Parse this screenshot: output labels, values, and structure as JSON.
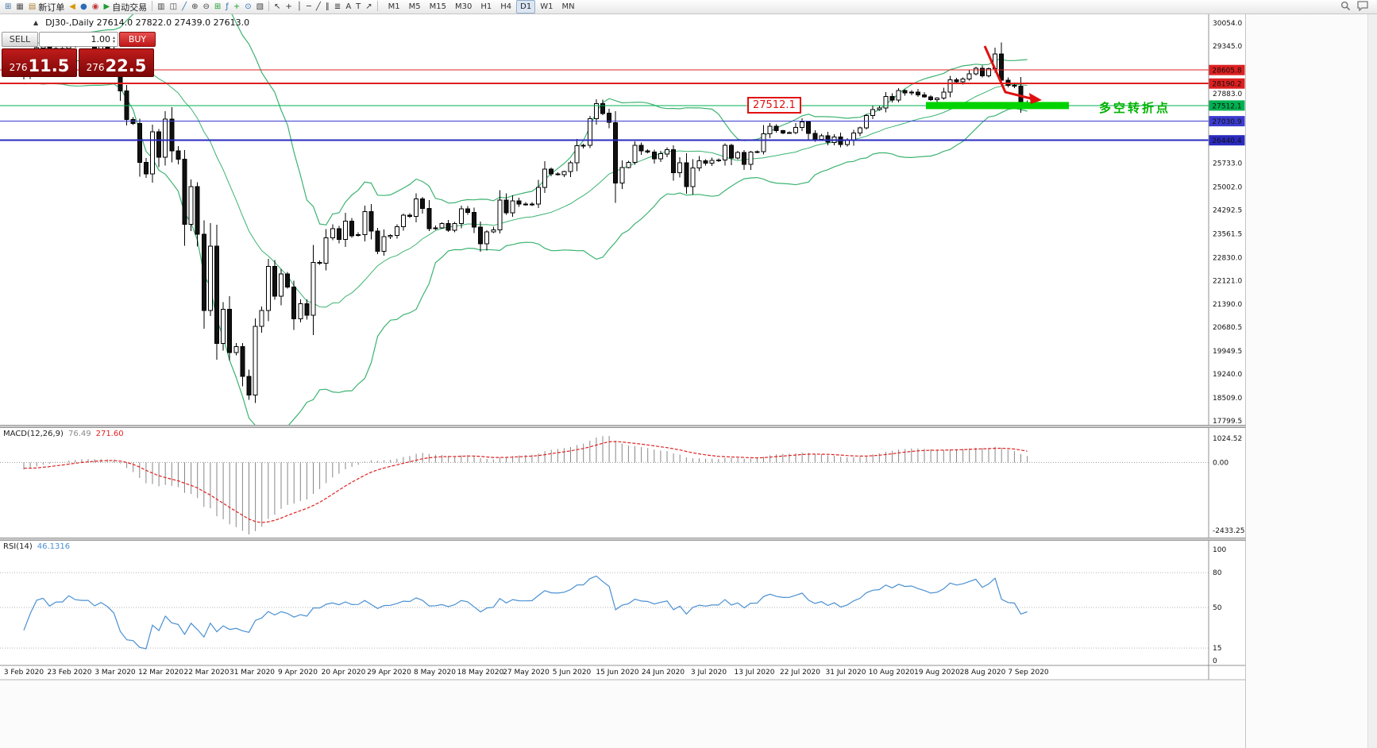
{
  "toolbar": {
    "buttons": [
      {
        "name": "new-chart-icon",
        "glyph": "⊞",
        "color": "#3a6ea5"
      },
      {
        "name": "profiles-icon",
        "glyph": "▦",
        "color": "#555555"
      },
      {
        "name": "new-order-button",
        "glyph": "▤",
        "color": "#b08030",
        "label": "新订单"
      },
      {
        "name": "alerts-icon",
        "glyph": "◀",
        "color": "#d69a00"
      },
      {
        "name": "news-icon",
        "glyph": "●",
        "color": "#2b6cb8"
      },
      {
        "name": "market-icon",
        "glyph": "◉",
        "color": "#c23b3b"
      },
      {
        "name": "auto-trading-button",
        "glyph": "▶",
        "color": "#1f9d2f",
        "label": "自动交易"
      },
      {
        "name": "separator"
      },
      {
        "name": "bar-chart-icon",
        "glyph": "▥",
        "color": "#444444"
      },
      {
        "name": "candlestick-chart-icon",
        "glyph": "◫",
        "color": "#444444"
      },
      {
        "name": "line-chart-icon",
        "glyph": "╱",
        "color": "#2b6cb8"
      },
      {
        "name": "zoom-in-icon",
        "glyph": "⊕",
        "color": "#444444"
      },
      {
        "name": "zoom-out-icon",
        "glyph": "⊖",
        "color": "#444444"
      },
      {
        "name": "tile-windows-icon",
        "glyph": "⊞",
        "color": "#1f9d2f"
      },
      {
        "name": "indicators-list-icon",
        "glyph": "ƒ",
        "color": "#2b6cb8"
      },
      {
        "name": "add-indicator-icon",
        "glyph": "+",
        "color": "#1f9d2f"
      },
      {
        "name": "periods-icon",
        "glyph": "⊙",
        "color": "#2b6cb8"
      },
      {
        "name": "templates-icon",
        "glyph": "▧",
        "color": "#444444"
      },
      {
        "name": "separator"
      },
      {
        "name": "cursor-icon",
        "glyph": "↖",
        "color": "#333333"
      },
      {
        "name": "crosshair-icon",
        "glyph": "+",
        "color": "#333333"
      },
      {
        "name": "vertical-line-icon",
        "glyph": "│",
        "color": "#333333"
      },
      {
        "name": "horizontal-line-icon",
        "glyph": "─",
        "color": "#333333"
      },
      {
        "name": "trendline-icon",
        "glyph": "╱",
        "color": "#333333"
      },
      {
        "name": "channel-icon",
        "glyph": "∥",
        "color": "#333333"
      },
      {
        "name": "fibonacci-icon",
        "glyph": "≣",
        "color": "#333333"
      },
      {
        "name": "text-icon",
        "glyph": "A",
        "color": "#333333"
      },
      {
        "name": "label-icon",
        "glyph": "T",
        "color": "#333333"
      },
      {
        "name": "arrows-icon",
        "glyph": "↗",
        "color": "#333333"
      },
      {
        "name": "separator"
      }
    ],
    "timeframes": [
      "M1",
      "M5",
      "M15",
      "M30",
      "H1",
      "H4",
      "D1",
      "W1",
      "MN"
    ],
    "active_timeframe": "D1",
    "right_icons": [
      {
        "name": "search-icon"
      },
      {
        "name": "chat-icon"
      }
    ]
  },
  "one_click": {
    "collapse_icon": "▲",
    "sell_label": "SELL",
    "buy_label": "BUY",
    "volume": "1.00",
    "sell_price": "27611.5",
    "buy_price": "27622.5",
    "sell_small": "276",
    "sell_big": "11.5",
    "buy_small": "276",
    "buy_big": "22.5"
  },
  "chart_data": {
    "type": "candlestick",
    "symbol": "DJ30-",
    "period": "Daily",
    "title": "DJ30-,Daily 27614.0 27822.0 27439.0 27613.0",
    "ohlc_display": {
      "open": 27614.0,
      "high": 27822.0,
      "low": 27439.0,
      "close": 27613.0
    },
    "ylim": [
      17628,
      30323
    ],
    "y_axis_ticks": [
      30054.0,
      29345.0,
      27883.0,
      25733.0,
      25002.0,
      24292.5,
      23561.5,
      22830.0,
      22121.0,
      21390.0,
      20680.5,
      19949.5,
      19240.0,
      18509.0,
      17799.5
    ],
    "x_labels": [
      "3 Feb 2020",
      "23 Feb 2020",
      "3 Mar 2020",
      "12 Mar 2020",
      "22 Mar 2020",
      "31 Mar 2020",
      "9 Apr 2020",
      "20 Apr 2020",
      "29 Apr 2020",
      "8 May 2020",
      "18 May 2020",
      "27 May 2020",
      "5 Jun 2020",
      "15 Jun 2020",
      "24 Jun 2020",
      "3 Jul 2020",
      "13 Jul 2020",
      "22 Jul 2020",
      "31 Jul 2020",
      "10 Aug 2020",
      "19 Aug 2020",
      "28 Aug 2020",
      "7 Sep 2020"
    ],
    "seed_closes": [
      29350,
      29250,
      29160,
      29300,
      29220,
      29100,
      28990,
      28850,
      28750,
      28700,
      28950,
      29000,
      28850,
      28700,
      28550,
      28250,
      28400,
      28500,
      28450
    ],
    "closes": [
      28400,
      28807,
      29290,
      29380,
      29103,
      29277,
      29276,
      29551,
      29423,
      29398,
      29398,
      29232,
      29348,
      29220,
      28992,
      27961,
      27081,
      26958,
      25766,
      25409,
      26703,
      25917,
      27091,
      26121,
      25865,
      23851,
      25018,
      23553,
      21200,
      23185,
      20188,
      21237,
      19899,
      20087,
      19174,
      18592,
      20705,
      21200,
      22552,
      21637,
      22327,
      21917,
      20944,
      21413,
      21053,
      22680,
      22654,
      23434,
      23719,
      23391,
      23949,
      23504,
      23537,
      24242,
      23650,
      23018,
      23476,
      23515,
      23775,
      24134,
      24101,
      24634,
      24346,
      23724,
      23749,
      23883,
      23665,
      23876,
      24331,
      24222,
      23765,
      23248,
      23625,
      23685,
      24597,
      24207,
      24576,
      24474,
      24465,
      24480,
      24995,
      25548,
      25401,
      25383,
      25475,
      25743,
      26270,
      26282,
      27111,
      27572,
      27272,
      26990,
      25128,
      25605,
      25763,
      26290,
      26120,
      26080,
      25871,
      26025,
      26156,
      25446,
      25746,
      25016,
      25596,
      25813,
      25735,
      25827,
      25830,
      26287,
      25891,
      26067,
      25706,
      26075,
      26086,
      26643,
      26870,
      26735,
      26672,
      26681,
      26840,
      27006,
      26652,
      26470,
      26585,
      26379,
      26540,
      26313,
      26428,
      26664,
      26828,
      27202,
      27387,
      27433,
      27791,
      27686,
      27977,
      27897,
      27931,
      27845,
      27778,
      27693,
      27740,
      27930,
      28308,
      28248,
      28332,
      28492,
      28654,
      28430,
      28646,
      29101,
      28293,
      28133,
      28105,
      27501,
      27613
    ],
    "price_lines": [
      {
        "price": 28605.8,
        "label": "28605.8",
        "color": "#dd2020",
        "width": 1
      },
      {
        "price": 28190.2,
        "label": "28190.2",
        "color": "#dd2020",
        "width": 2
      },
      {
        "price": 27512.1,
        "label": "27512.1",
        "color": "#00b050",
        "width": 1
      },
      {
        "price": 27030.9,
        "label": "27030.9",
        "color": "#3b3bd0",
        "width": 1
      },
      {
        "price": 26440.4,
        "label": "26440.4",
        "color": "#2a2ac0",
        "width": 2
      }
    ],
    "indicators": {
      "bollinger": {
        "period": 20,
        "deviation": 2,
        "color": "#3cb371"
      },
      "macd": {
        "label": "MACD(12,26,9)",
        "value_main": "76.49",
        "value_signal": "271.60",
        "fast": 12,
        "slow": 26,
        "signal": 9,
        "scale_max": "1024.52",
        "scale_zero": "0.00",
        "scale_min": "-2433.25",
        "histogram_color": "#878787",
        "signal_color": "#e02020"
      },
      "rsi": {
        "label": "RSI(14)",
        "value": "46.1316",
        "period": 14,
        "levels": [
          100,
          80,
          50,
          15,
          0
        ],
        "line_color": "#4a90d2"
      }
    },
    "annotations": {
      "price_callout": {
        "text": "27512.1",
        "color": "#e01010"
      },
      "highlight_bar": {
        "price": 27512.1,
        "color": "#00d300"
      },
      "cn_label": {
        "text": "多空转折点",
        "color": "#00b300"
      },
      "trend_arrow": {
        "color": "#e01010"
      }
    }
  }
}
